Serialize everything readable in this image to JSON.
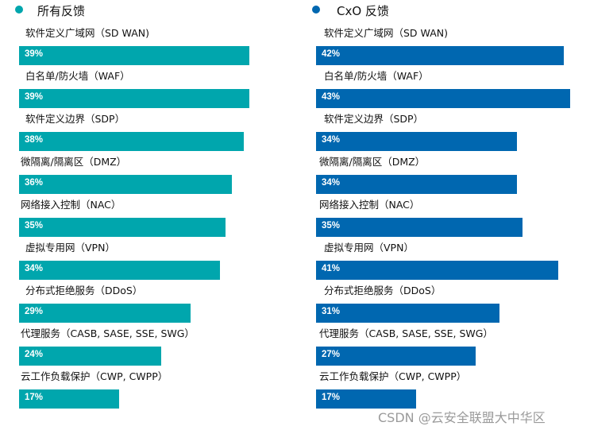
{
  "chart_data": [
    {
      "type": "bar",
      "orientation": "horizontal",
      "title": "所有反馈",
      "color": "#00a6ad",
      "categories": [
        "软件定义广域网（SD WAN)",
        "白名单/防火墙（WAF）",
        "软件定义边界（SDP）",
        "微隔离/隔离区（DMZ）",
        "网络接入控制（NAC）",
        "虚拟专用网（VPN）",
        "分布式拒绝服务（DDoS）",
        "代理服务（CASB, SASE, SSE, SWG）",
        "云工作负载保护（CWP, CWPP）"
      ],
      "values": [
        39,
        39,
        38,
        36,
        35,
        34,
        29,
        24,
        17
      ],
      "value_labels": [
        "39%",
        "39%",
        "38%",
        "36%",
        "35%",
        "34%",
        "29%",
        "24%",
        "17%"
      ]
    },
    {
      "type": "bar",
      "orientation": "horizontal",
      "title": "CxO 反馈",
      "color": "#0067b0",
      "categories": [
        "软件定义广域网（SD WAN)",
        "白名单/防火墙（WAF）",
        "软件定义边界（SDP）",
        "微隔离/隔离区（DMZ）",
        "网络接入控制（NAC）",
        "虚拟专用网（VPN）",
        "分布式拒绝服务（DDoS）",
        "代理服务（CASB, SASE, SSE, SWG）",
        "云工作负载保护（CWP, CWPP）"
      ],
      "values": [
        42,
        43,
        34,
        34,
        35,
        41,
        31,
        27,
        17
      ],
      "value_labels": [
        "42%",
        "43%",
        "34%",
        "34%",
        "35%",
        "41%",
        "31%",
        "27%",
        "17%"
      ]
    }
  ],
  "watermark": "CSDN @云安全联盟大中华区"
}
